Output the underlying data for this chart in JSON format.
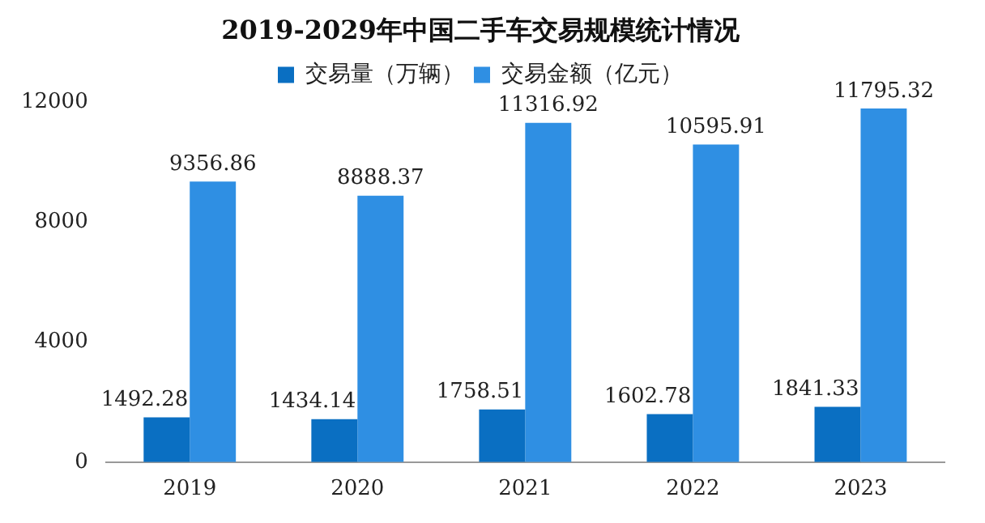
{
  "chart_data": {
    "type": "bar",
    "title": "2019-2029年中国二手车交易规模统计情况",
    "categories": [
      "2019",
      "2020",
      "2021",
      "2022",
      "2023"
    ],
    "series": [
      {
        "name": "交易量（万辆）",
        "color": "#0a6fc2",
        "values": [
          1492.28,
          1434.14,
          1758.51,
          1602.78,
          1841.33
        ]
      },
      {
        "name": "交易金额（亿元）",
        "color": "#2f8fe3",
        "values": [
          9356.86,
          8888.37,
          11316.92,
          10595.91,
          11795.32
        ]
      }
    ],
    "ylim": [
      0,
      12000
    ],
    "yticks": [
      0,
      4000,
      8000,
      12000
    ],
    "grid": false,
    "legend": "top",
    "data_labels": true
  }
}
